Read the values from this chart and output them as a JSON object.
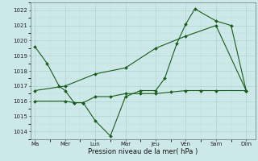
{
  "title": "Pression niveau de la mer( hPa )",
  "bg_color": "#cce8e8",
  "grid_major_color": "#b0d4cc",
  "grid_minor_color": "#c0dcd8",
  "line_color": "#1a5c1a",
  "x_labels": [
    "Ma",
    "Mer",
    "Lun",
    "Mar",
    "Jeu",
    "Ven",
    "Sam",
    "Dim"
  ],
  "x_tick_pos": [
    0,
    1,
    2,
    3,
    4,
    5,
    6,
    7
  ],
  "ylim": [
    1013.5,
    1022.5
  ],
  "yticks": [
    1014,
    1015,
    1016,
    1017,
    1018,
    1019,
    1020,
    1021,
    1022
  ],
  "line1_x": [
    0,
    0.4,
    0.8,
    1.0,
    1.3,
    1.6,
    2.0,
    2.5,
    3.0,
    3.5,
    4.0,
    4.3,
    4.7,
    5.0,
    5.3,
    6.0,
    6.5,
    7.0
  ],
  "line1_y": [
    1019.6,
    1018.5,
    1017.0,
    1016.7,
    1015.9,
    1015.9,
    1014.7,
    1013.7,
    1016.3,
    1016.7,
    1016.7,
    1017.5,
    1019.8,
    1021.1,
    1022.1,
    1021.3,
    1021.0,
    1016.7
  ],
  "line2_x": [
    0,
    1.0,
    1.3,
    1.6,
    2.0,
    2.5,
    3.0,
    3.5,
    4.0,
    4.5,
    5.0,
    5.5,
    6.0,
    7.0
  ],
  "line2_y": [
    1016.0,
    1016.0,
    1015.9,
    1015.9,
    1016.3,
    1016.3,
    1016.5,
    1016.5,
    1016.5,
    1016.6,
    1016.7,
    1016.7,
    1016.7,
    1016.7
  ],
  "line3_x": [
    0,
    1,
    2,
    3,
    4,
    5,
    6,
    7
  ],
  "line3_y": [
    1016.7,
    1017.0,
    1017.8,
    1018.2,
    1019.5,
    1020.3,
    1021.0,
    1016.7
  ]
}
